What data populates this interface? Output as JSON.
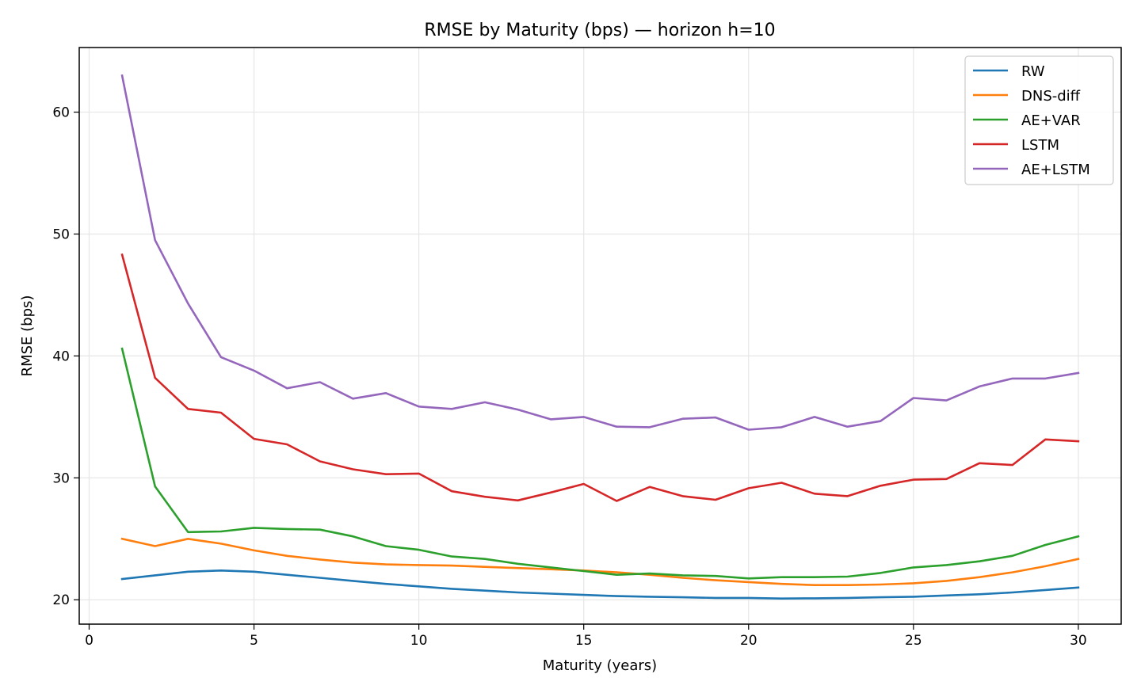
{
  "chart_data": {
    "type": "line",
    "title": "RMSE by Maturity (bps) — horizon h=10",
    "xlabel": "Maturity (years)",
    "ylabel": "RMSE (bps)",
    "xlim": [
      -0.3,
      31.3
    ],
    "ylim": [
      18,
      65.3
    ],
    "xticks": [
      0,
      5,
      10,
      15,
      20,
      25,
      30
    ],
    "yticks": [
      20,
      30,
      40,
      50,
      60
    ],
    "grid": true,
    "legend_position": "top-right",
    "x": [
      1,
      2,
      3,
      4,
      5,
      6,
      7,
      8,
      9,
      10,
      11,
      12,
      13,
      14,
      15,
      16,
      17,
      18,
      19,
      20,
      21,
      22,
      23,
      24,
      25,
      26,
      27,
      28,
      29,
      30
    ],
    "series": [
      {
        "name": "RW",
        "color": "#1f77b4",
        "values": [
          21.7,
          22.0,
          22.3,
          22.4,
          22.3,
          22.05,
          21.8,
          21.55,
          21.3,
          21.1,
          20.9,
          20.75,
          20.6,
          20.5,
          20.4,
          20.3,
          20.25,
          20.2,
          20.15,
          20.15,
          20.1,
          20.12,
          20.15,
          20.2,
          20.25,
          20.35,
          20.45,
          20.6,
          20.8,
          21.0
        ]
      },
      {
        "name": "DNS-diff",
        "color": "#ff7f0e",
        "values": [
          25.0,
          24.4,
          25.0,
          24.6,
          24.05,
          23.6,
          23.3,
          23.05,
          22.9,
          22.85,
          22.8,
          22.7,
          22.6,
          22.5,
          22.4,
          22.25,
          22.05,
          21.8,
          21.6,
          21.45,
          21.3,
          21.2,
          21.2,
          21.25,
          21.35,
          21.55,
          21.85,
          22.25,
          22.75,
          23.35
        ]
      },
      {
        "name": "AE+VAR",
        "color": "#2ca02c",
        "values": [
          40.6,
          29.3,
          25.55,
          25.6,
          25.9,
          25.8,
          25.75,
          25.2,
          24.4,
          24.1,
          23.55,
          23.35,
          22.95,
          22.65,
          22.35,
          22.05,
          22.15,
          22.0,
          21.95,
          21.75,
          21.85,
          21.85,
          21.9,
          22.2,
          22.65,
          22.85,
          23.15,
          23.6,
          24.5,
          25.2
        ]
      },
      {
        "name": "LSTM",
        "color": "#d62728",
        "values": [
          48.3,
          38.2,
          35.65,
          35.35,
          33.2,
          32.75,
          31.35,
          30.7,
          30.3,
          30.35,
          28.9,
          28.45,
          28.15,
          28.8,
          29.5,
          28.1,
          29.25,
          28.5,
          28.2,
          29.15,
          29.6,
          28.7,
          28.5,
          29.35,
          29.85,
          29.9,
          31.2,
          31.05,
          33.15,
          33.0
        ]
      },
      {
        "name": "AE+LSTM",
        "color": "#9467bd",
        "values": [
          63.0,
          49.5,
          44.3,
          39.9,
          38.8,
          37.35,
          37.85,
          36.5,
          36.95,
          35.85,
          35.65,
          36.2,
          35.6,
          34.8,
          35.0,
          34.2,
          34.15,
          34.85,
          34.95,
          33.95,
          34.15,
          35.0,
          34.2,
          34.65,
          36.55,
          36.35,
          37.5,
          38.15,
          38.15,
          38.6
        ]
      }
    ]
  }
}
